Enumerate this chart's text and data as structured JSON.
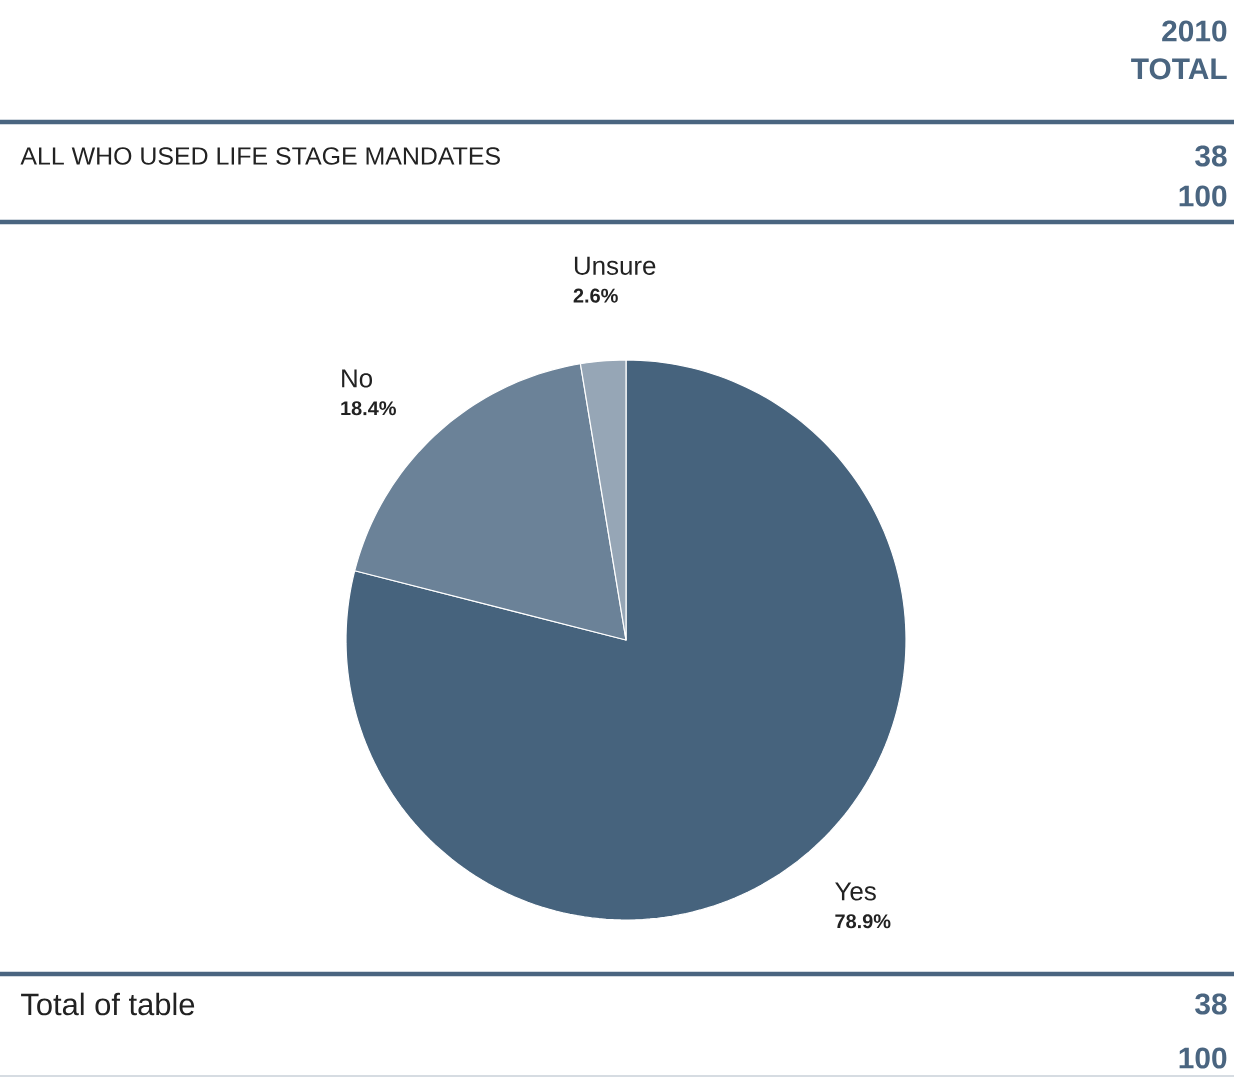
{
  "chart_data": {
    "type": "pie",
    "categories": [
      "Yes",
      "No",
      "Unsure"
    ],
    "values": [
      78.9,
      18.4,
      2.6
    ],
    "value_labels": [
      "78.9%",
      "18.4%",
      "2.6%"
    ],
    "colors": [
      "#46637d",
      "#6b8298",
      "#96a6b6"
    ],
    "annotations": [
      "2010 TOTAL",
      "ALL WHO USED LIFE STAGE MANDATES",
      "38",
      "100",
      "Total of table",
      "38",
      "100"
    ]
  }
}
